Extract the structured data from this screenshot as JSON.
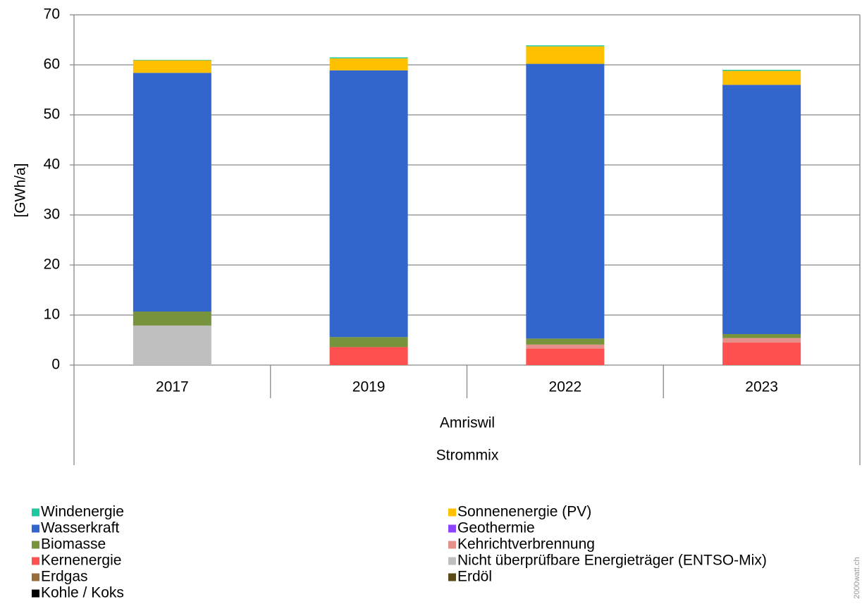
{
  "chart_data": {
    "type": "stacked_bar",
    "ylabel": "[GWh/a]",
    "categories": [
      "2017",
      "2019",
      "2022",
      "2023"
    ],
    "group_labels": [
      "Amriswil",
      "Strommix"
    ],
    "watermark": "2000watt.ch",
    "ylim": [
      0,
      70
    ],
    "yticks": [
      0,
      10,
      20,
      30,
      40,
      50,
      60,
      70
    ],
    "grid": true,
    "series": [
      {
        "name": "Windenergie",
        "color": "#1fc8a0",
        "values": [
          0.1,
          0.2,
          0.2,
          0.2
        ]
      },
      {
        "name": "Sonnenenergie (PV)",
        "color": "#ffc000",
        "values": [
          2.5,
          2.4,
          3.5,
          2.8
        ]
      },
      {
        "name": "Wasserkraft",
        "color": "#3366cc",
        "values": [
          47.7,
          53.3,
          54.9,
          49.8
        ]
      },
      {
        "name": "Geothermie",
        "color": "#8e44ff",
        "values": [
          0,
          0,
          0,
          0
        ]
      },
      {
        "name": "Biomasse",
        "color": "#77933c",
        "values": [
          2.8,
          2.0,
          1.2,
          0.8
        ]
      },
      {
        "name": "Kehrichtverbrennung",
        "color": "#e6908c",
        "values": [
          0,
          0,
          0.8,
          0.9
        ]
      },
      {
        "name": "Kernenergie",
        "color": "#ff5050",
        "values": [
          0,
          3.6,
          3.3,
          4.5
        ]
      },
      {
        "name": "Nicht überprüfbare Energieträger (ENTSO-Mix)",
        "color": "#bfbfbf",
        "values": [
          7.9,
          0,
          0,
          0
        ]
      },
      {
        "name": "Erdgas",
        "color": "#9c6b3c",
        "values": [
          0,
          0,
          0,
          0
        ]
      },
      {
        "name": "Erdöl",
        "color": "#5a4a1a",
        "values": [
          0,
          0,
          0,
          0
        ]
      },
      {
        "name": "Kohle / Koks",
        "color": "#000000",
        "values": [
          0,
          0,
          0,
          0
        ]
      }
    ]
  }
}
